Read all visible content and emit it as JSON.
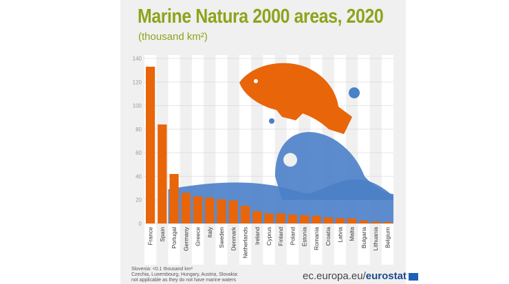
{
  "chart_data": {
    "type": "bar",
    "title": "Marine Natura 2000 areas, 2020",
    "subtitle": "(thousand km²)",
    "categories": [
      "France",
      "Spain",
      "Portugal",
      "Germany",
      "Greece",
      "Italy",
      "Sweden",
      "Denmark",
      "Netherlands",
      "Ireland",
      "Cyprus",
      "Finland",
      "Poland",
      "Estonia",
      "Romania",
      "Croatia",
      "Latvia",
      "Malta",
      "Bulgaria",
      "Lithuania",
      "Belgium"
    ],
    "values": [
      133,
      84,
      42,
      26,
      23,
      22,
      20.5,
      19.5,
      15,
      10.5,
      8.5,
      8.5,
      7.5,
      7,
      6.5,
      5,
      4.5,
      4.3,
      2.5,
      1.5,
      1.3
    ],
    "ylim": [
      0,
      140
    ],
    "yticks": [
      "0",
      "20",
      "40",
      "60",
      "80",
      "100",
      "120",
      "140"
    ],
    "grid": true,
    "colors": {
      "bar": "#e8650a",
      "wave": "#4a80c8",
      "title": "#8ea31b"
    }
  },
  "footnotes": [
    "Slovenia: <0.1 thousand km²",
    "Czechia, Luxembourg, Hungary, Austria, Slovakia:",
    "not applicable as they do not have marine waters"
  ],
  "source": {
    "prefix": "ec.europa.eu/",
    "brand": "eurostat"
  }
}
